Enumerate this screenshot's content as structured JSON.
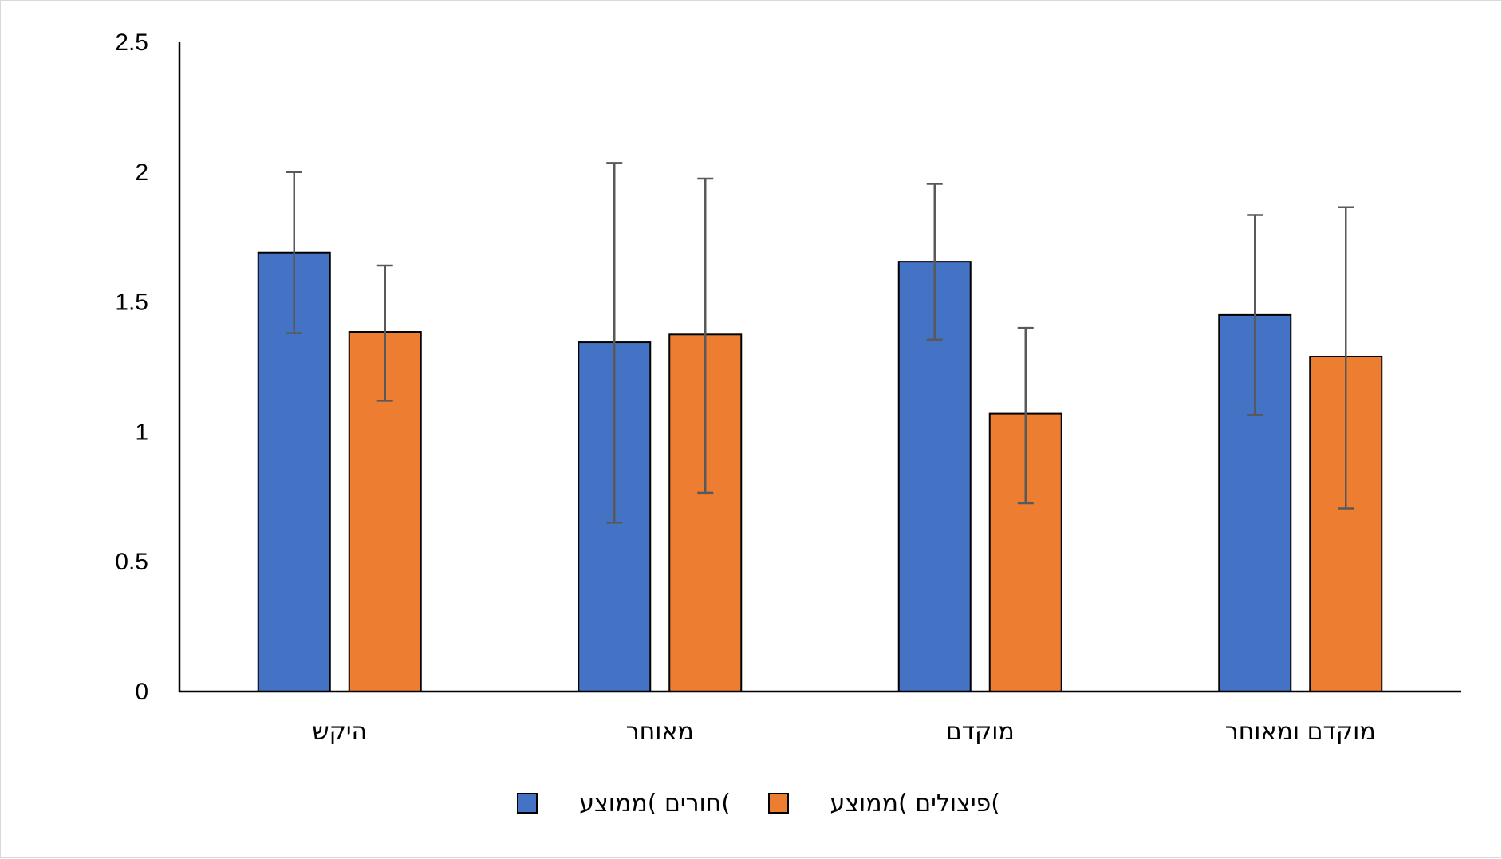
{
  "chart_data": {
    "type": "bar",
    "categories": [
      "היקש",
      "מאוחר",
      "מוקדם",
      "מוקדם ומאוחר"
    ],
    "series": [
      {
        "name": "חורים )ממוצע(",
        "color": "#4472c4",
        "values": [
          1.69,
          1.345,
          1.655,
          1.45
        ],
        "error_low": [
          1.38,
          0.65,
          1.355,
          1.065
        ],
        "error_high": [
          2.0,
          2.035,
          1.955,
          1.835
        ]
      },
      {
        "name": "פיצולים )ממוצע(",
        "color": "#ed7d31",
        "values": [
          1.385,
          1.375,
          1.07,
          1.29
        ],
        "error_low": [
          1.12,
          0.765,
          0.725,
          0.705
        ],
        "error_high": [
          1.64,
          1.975,
          1.4,
          1.865
        ]
      }
    ],
    "y_ticks": [
      "0",
      "0.5",
      "1",
      "1.5",
      "2",
      "2.5"
    ],
    "ylim": [
      0,
      2.5
    ],
    "grid": false,
    "legend_position": "bottom",
    "title": "",
    "xlabel": "",
    "ylabel": ""
  }
}
